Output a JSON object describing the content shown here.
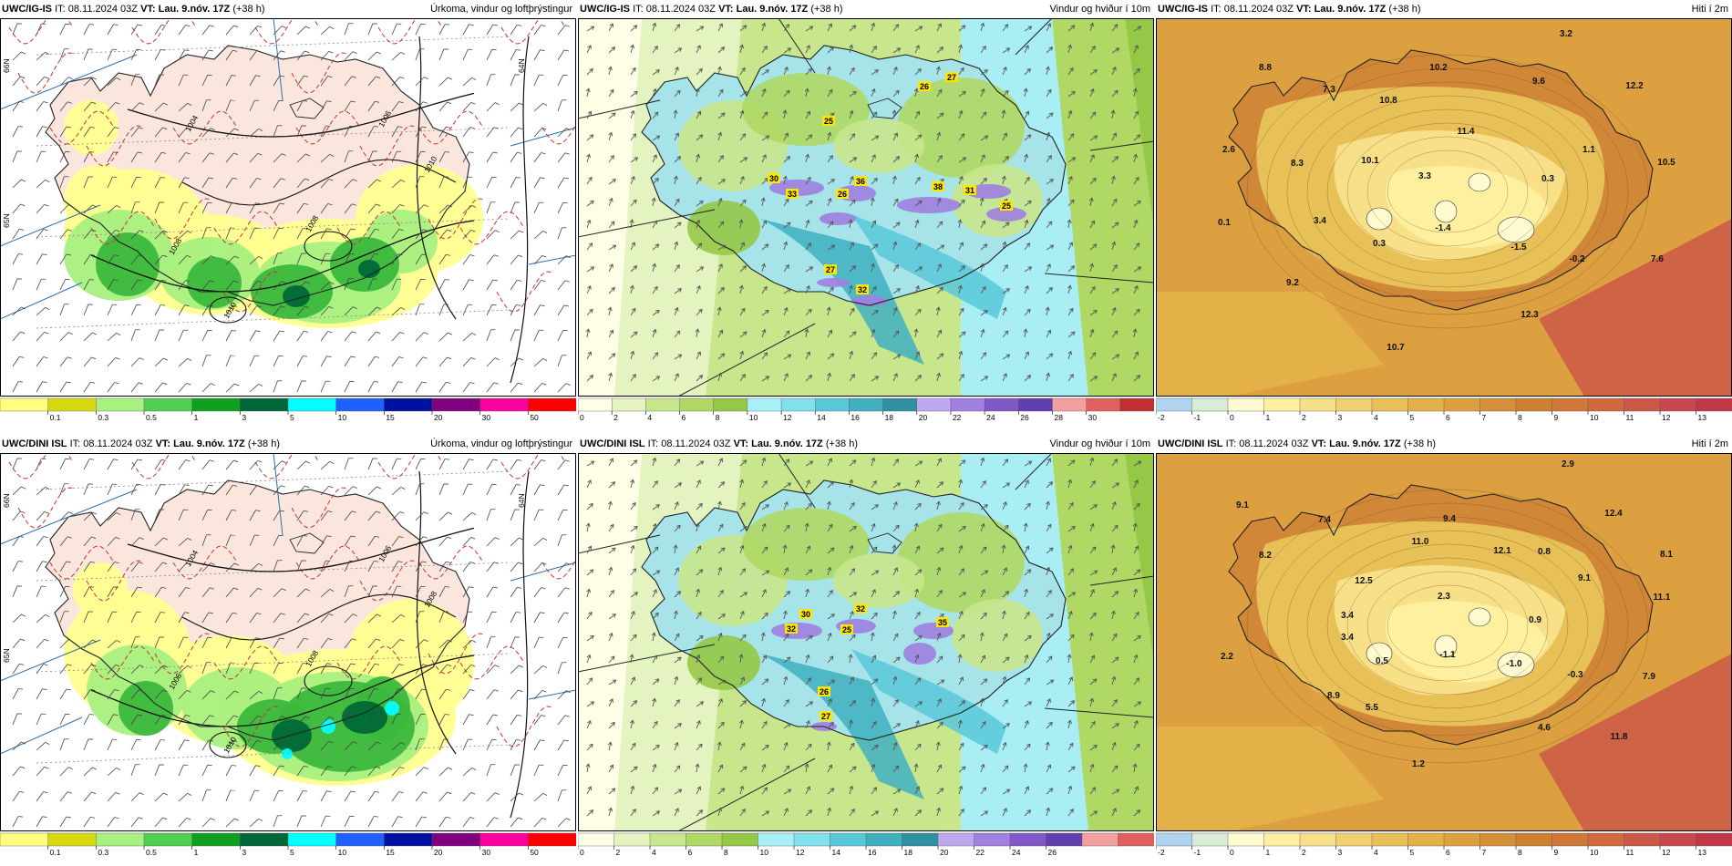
{
  "panels": [
    {
      "id": "p00",
      "model": "UWC/IG-IS",
      "it_label": "IT:",
      "it": "08.11.2024 03Z",
      "vt_label": "VT:",
      "vt": "Lau. 9.nóv. 17Z",
      "lead": "(+38 h)",
      "field": "Úrkoma, vindur og loftþrýstingur",
      "type": "precip",
      "isobars": [
        "1004",
        "1006",
        "1008",
        "1010",
        "1010",
        "1008"
      ],
      "lat_labels": [
        "66N",
        "65N",
        "64N"
      ],
      "colorbar": {
        "ticks": [
          "0.1",
          "0.3",
          "0.5",
          "1",
          "3",
          "5",
          "10",
          "15",
          "20",
          "30",
          "50"
        ],
        "colors": [
          "#ffff80",
          "#d8d810",
          "#a8f080",
          "#50d050",
          "#10a020",
          "#006838",
          "#00ffff",
          "#2060ff",
          "#0010a0",
          "#800080",
          "#ff00a0",
          "#ff0000"
        ]
      }
    },
    {
      "id": "p01",
      "model": "UWC/IG-IS",
      "it_label": "IT:",
      "it": "08.11.2024 03Z",
      "vt_label": "VT:",
      "vt": "Lau. 9.nóv. 17Z",
      "lead": "(+38 h)",
      "field": "Vindur og hviður í 10m",
      "type": "wind",
      "labels": [
        "26",
        "27",
        "25",
        "30",
        "36",
        "33",
        "26",
        "38",
        "31",
        "25",
        "27",
        "32"
      ],
      "colorbar": {
        "ticks": [
          "0",
          "2",
          "4",
          "6",
          "8",
          "10",
          "12",
          "14",
          "16",
          "18",
          "20",
          "22",
          "24",
          "26",
          "28",
          "30"
        ],
        "colors": [
          "#fefee6",
          "#e4f4c0",
          "#c8e68c",
          "#b0d864",
          "#96c848",
          "#a8f0f8",
          "#80e0ec",
          "#58c8d8",
          "#40b0c0",
          "#3090a0",
          "#c0a8f0",
          "#a080e0",
          "#8058c8",
          "#6040b0",
          "#f4a0a0",
          "#e06060",
          "#c03030"
        ]
      }
    },
    {
      "id": "p02",
      "model": "UWC/IG-IS",
      "it_label": "IT:",
      "it": "08.11.2024 03Z",
      "vt_label": "VT:",
      "vt": "Lau. 9.nóv. 17Z",
      "lead": "(+38 h)",
      "field": "Hiti í 2m",
      "type": "temp",
      "labels": [
        "3.2",
        "8.8",
        "7.3",
        "10.2",
        "9.6",
        "12.2",
        "10.8",
        "11.4",
        "2.6",
        "8.3",
        "10.1",
        "3.3",
        "1.1",
        "0.3",
        "10.5",
        "0.1",
        "3.4",
        "0.3",
        "-1.4",
        "-1.5",
        "-0.2",
        "7.6",
        "9.2",
        "12.3",
        "10.7"
      ],
      "colorbar": {
        "ticks": [
          "-2",
          "-1",
          "0",
          "1",
          "2",
          "3",
          "4",
          "5",
          "6",
          "7",
          "8",
          "9",
          "10",
          "11",
          "12",
          "13"
        ],
        "colors": [
          "#b0d4f0",
          "#d8ecd8",
          "#fffbd0",
          "#fff0a0",
          "#f8e088",
          "#f0d070",
          "#e8c058",
          "#e4b048",
          "#dca040",
          "#d49038",
          "#cc8030",
          "#d07838",
          "#d06840",
          "#cc5848",
          "#c84850",
          "#c03848"
        ]
      }
    },
    {
      "id": "p10",
      "model": "UWC/DINI ISL",
      "it_label": "IT:",
      "it": "08.11.2024 03Z",
      "vt_label": "VT:",
      "vt": "Lau. 9.nóv. 17Z",
      "lead": "(+38 h)",
      "field": "Úrkoma, vindur og loftþrýstingur",
      "type": "precip",
      "isobars": [
        "1004",
        "1006",
        "1008",
        "1010",
        "1008",
        "1006"
      ],
      "lat_labels": [
        "66N",
        "65N",
        "64N"
      ],
      "colorbar": {
        "ticks": [
          "0.1",
          "0.3",
          "0.5",
          "1",
          "3",
          "5",
          "10",
          "15",
          "20",
          "30",
          "50"
        ],
        "colors": [
          "#ffff80",
          "#d8d810",
          "#a8f080",
          "#50d050",
          "#10a020",
          "#006838",
          "#00ffff",
          "#2060ff",
          "#0010a0",
          "#800080",
          "#ff00a0",
          "#ff0000"
        ]
      }
    },
    {
      "id": "p11",
      "model": "UWC/DINI ISL",
      "it_label": "IT:",
      "it": "08.11.2024 03Z",
      "vt_label": "VT:",
      "vt": "Lau. 9.nóv. 17Z",
      "lead": "(+38 h)",
      "field": "Vindur og hviður í 10m",
      "type": "wind",
      "labels": [
        "30",
        "32",
        "32",
        "25",
        "35",
        "26",
        "27"
      ],
      "colorbar": {
        "ticks": [
          "0",
          "2",
          "4",
          "6",
          "8",
          "10",
          "12",
          "14",
          "16",
          "18",
          "20",
          "22",
          "24",
          "26"
        ],
        "colors": [
          "#fefee6",
          "#e4f4c0",
          "#c8e68c",
          "#b0d864",
          "#96c848",
          "#a8f0f8",
          "#80e0ec",
          "#58c8d8",
          "#40b0c0",
          "#3090a0",
          "#c0a8f0",
          "#a080e0",
          "#8058c8",
          "#6040b0",
          "#f4a0a0",
          "#e06060"
        ]
      }
    },
    {
      "id": "p12",
      "model": "UWC/DINI ISL",
      "it_label": "IT:",
      "it": "08.11.2024 03Z",
      "vt_label": "VT:",
      "vt": "Lau. 9.nóv. 17Z",
      "lead": "(+38 h)",
      "field": "Hiti í 2m",
      "type": "temp",
      "labels": [
        "2.9",
        "9.1",
        "7.4",
        "9.4",
        "12.4",
        "11.0",
        "8.2",
        "12.1",
        "0.8",
        "8.1",
        "12.5",
        "2.3",
        "9.1",
        "3.4",
        "11.1",
        "0.9",
        "3.4",
        "2.2",
        "0.5",
        "-1.1",
        "-1.0",
        "-0.3",
        "7.9",
        "8.9",
        "5.5",
        "4.6",
        "11.8",
        "1.2"
      ],
      "colorbar": {
        "ticks": [
          "-2",
          "-1",
          "0",
          "1",
          "2",
          "3",
          "4",
          "5",
          "6",
          "7",
          "8",
          "9",
          "10",
          "11",
          "12",
          "13"
        ],
        "colors": [
          "#b0d4f0",
          "#d8ecd8",
          "#fffbd0",
          "#fff0a0",
          "#f8e088",
          "#f0d070",
          "#e8c058",
          "#e4b048",
          "#dca040",
          "#d49038",
          "#cc8030",
          "#d07838",
          "#d06840",
          "#cc5848",
          "#c84850",
          "#c03848"
        ]
      }
    }
  ]
}
